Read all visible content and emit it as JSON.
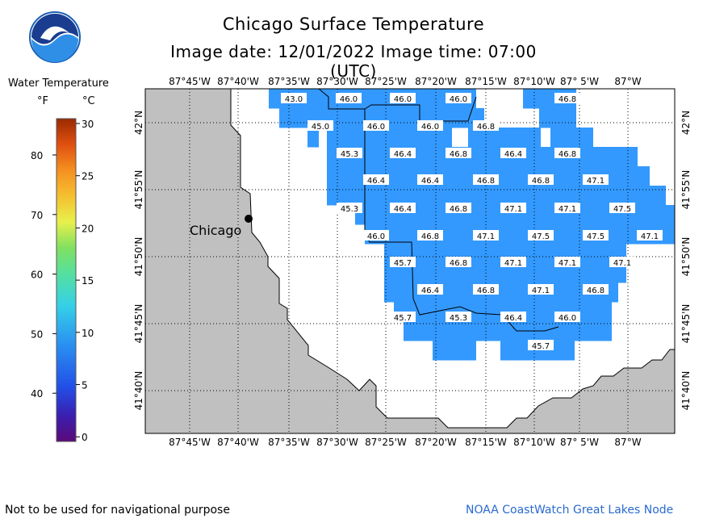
{
  "title": "Chicago Surface Temperature",
  "subtitle": "Image date: 12/01/2022    Image time: 07:00 (UTC)",
  "logo_text": "NOAA",
  "legend": {
    "title": "Water Temperature",
    "unit_f": "°F",
    "unit_c": "°C",
    "f_ticks": [
      "80",
      "70",
      "60",
      "50",
      "40"
    ],
    "c_ticks": [
      "30",
      "25",
      "20",
      "15",
      "10",
      "5",
      "0"
    ],
    "colors": {
      "water": "#3399ff",
      "land": "#c0c0c0"
    }
  },
  "city": "Chicago",
  "longitudes": [
    "87°45'W",
    "87°40'W",
    "87°35'W",
    "87°30'W",
    "87°25'W",
    "87°20'W",
    "87°15'W",
    "87°10'W",
    "87° 5'W",
    "87°W"
  ],
  "latitudes": [
    "42°N",
    "41°55'N",
    "41°50'N",
    "41°45'N",
    "41°40'N"
  ],
  "temperatures": [
    [
      "43.0",
      "46.0",
      "46.0",
      "46.0",
      "46.8"
    ],
    [
      "45.0",
      "46.0",
      "46.0",
      "46.8"
    ],
    [
      "45.3",
      "46.4",
      "46.8",
      "46.4",
      "46.8"
    ],
    [
      "46.4",
      "46.4",
      "46.8",
      "46.8",
      "47.1"
    ],
    [
      "45.3",
      "46.4",
      "46.8",
      "47.1",
      "47.1",
      "47.5"
    ],
    [
      "46.0",
      "46.8",
      "47.1",
      "47.5",
      "47.5",
      "47.1"
    ],
    [
      "45.7",
      "46.8",
      "47.1",
      "47.1",
      "47.1"
    ],
    [
      "46.4",
      "46.8",
      "47.1",
      "46.8"
    ],
    [
      "45.7",
      "45.3",
      "46.4",
      "46.0"
    ],
    [
      "45.7"
    ]
  ],
  "footer_left": "Not to be used for navigational purpose",
  "footer_right": "NOAA CoastWatch Great Lakes Node"
}
